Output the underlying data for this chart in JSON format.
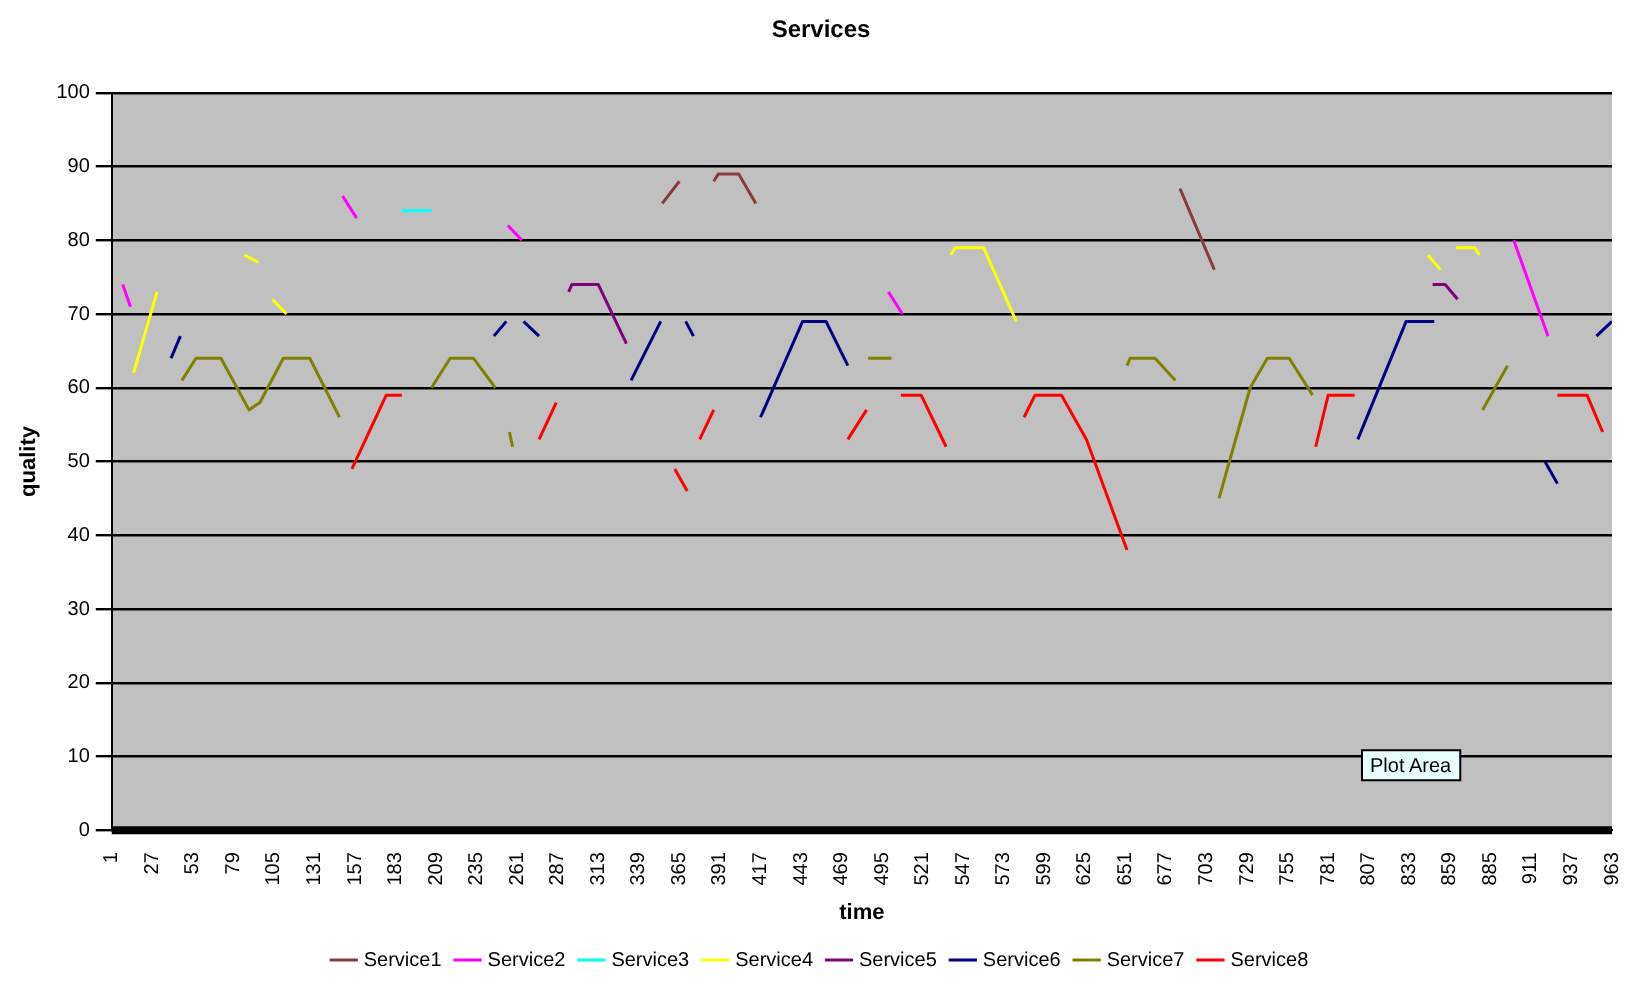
{
  "chart_data": {
    "type": "line",
    "title": "Services",
    "xlabel": "time",
    "ylabel": "quality",
    "xlim": [
      1,
      963
    ],
    "xticks": [
      1,
      27,
      53,
      79,
      105,
      131,
      157,
      183,
      209,
      235,
      261,
      287,
      313,
      339,
      365,
      391,
      417,
      443,
      469,
      495,
      521,
      547,
      573,
      599,
      625,
      651,
      677,
      703,
      729,
      755,
      781,
      807,
      833,
      859,
      885,
      911,
      937,
      963
    ],
    "ylim": [
      0,
      100
    ],
    "yticks": [
      0,
      10,
      20,
      30,
      40,
      50,
      60,
      70,
      80,
      90,
      100
    ],
    "grid": "y",
    "legend": "bottom",
    "marker": "none",
    "line_style": "solid",
    "annotations": [
      "Plot Area"
    ],
    "series": [
      {
        "name": "Service1",
        "color": "#8b3a3a",
        "x": [
          354,
          365,
          375,
          387,
          390,
          403,
          414,
          550,
          686,
          708
        ],
        "values": [
          85,
          88,
          null,
          88,
          89,
          89,
          85,
          null,
          87,
          76
        ]
      },
      {
        "name": "Service2",
        "color": "#ff00ff",
        "x": [
          8,
          13,
          80,
          149,
          158,
          200,
          255,
          264,
          400,
          499,
          508,
          700,
          900,
          922
        ],
        "values": [
          74,
          71,
          null,
          86,
          83,
          null,
          82,
          80,
          null,
          73,
          70,
          null,
          80,
          67
        ]
      },
      {
        "name": "Service3",
        "color": "#00ffff",
        "x": [
          187,
          206
        ],
        "values": [
          84,
          84
        ]
      },
      {
        "name": "Service4",
        "color": "#ffff00",
        "x": [
          15,
          30,
          50,
          86,
          95,
          100,
          104,
          113,
          300,
          539,
          542,
          560,
          581,
          700,
          845,
          853,
          857,
          863,
          875,
          878
        ],
        "values": [
          62,
          73,
          null,
          78,
          77,
          null,
          72,
          70,
          null,
          78,
          79,
          79,
          69,
          null,
          78,
          76,
          null,
          79,
          79,
          78
        ]
      },
      {
        "name": "Service5",
        "color": "#800080",
        "x": [
          294,
          296,
          313,
          331,
          600,
          848,
          856,
          864
        ],
        "values": [
          73,
          74,
          74,
          66,
          null,
          74,
          74,
          72
        ]
      },
      {
        "name": "Service6",
        "color": "#000080",
        "x": [
          39,
          45,
          150,
          246,
          254,
          260,
          265,
          275,
          300,
          334,
          353,
          360,
          369,
          374,
          400,
          417,
          444,
          459,
          473,
          600,
          800,
          831,
          849,
          900,
          920,
          928,
          940,
          953,
          963
        ],
        "values": [
          64,
          67,
          null,
          67,
          69,
          null,
          69,
          67,
          null,
          61,
          69,
          null,
          69,
          67,
          null,
          56,
          69,
          69,
          63,
          null,
          53,
          69,
          69,
          null,
          50,
          47,
          null,
          67,
          69
        ]
      },
      {
        "name": "Service7",
        "color": "#808000",
        "x": [
          46,
          55,
          71,
          89,
          96,
          111,
          128,
          147,
          180,
          206,
          218,
          233,
          247,
          252,
          256,
          258,
          300,
          486,
          501,
          600,
          652,
          654,
          670,
          683,
          700,
          711,
          731,
          742,
          756,
          771,
          800,
          880,
          896
        ],
        "values": [
          61,
          64,
          64,
          57,
          58,
          64,
          64,
          56,
          null,
          60,
          64,
          64,
          60,
          null,
          54,
          52,
          null,
          64,
          64,
          null,
          63,
          64,
          64,
          61,
          null,
          45,
          60,
          64,
          64,
          59,
          null,
          57,
          63
        ]
      },
      {
        "name": "Service8",
        "color": "#ff0000",
        "x": [
          155,
          177,
          187,
          250,
          275,
          286,
          320,
          362,
          370,
          374,
          378,
          387,
          420,
          473,
          485,
          495,
          507,
          520,
          536,
          560,
          586,
          593,
          610,
          626,
          652,
          700,
          773,
          781,
          798,
          850,
          928,
          947,
          957
        ],
        "values": [
          49,
          59,
          59,
          null,
          53,
          58,
          null,
          49,
          46,
          null,
          53,
          57,
          null,
          53,
          57,
          null,
          59,
          59,
          52,
          null,
          56,
          59,
          59,
          53,
          38,
          null,
          52,
          59,
          59,
          null,
          59,
          59,
          54
        ]
      }
    ]
  }
}
